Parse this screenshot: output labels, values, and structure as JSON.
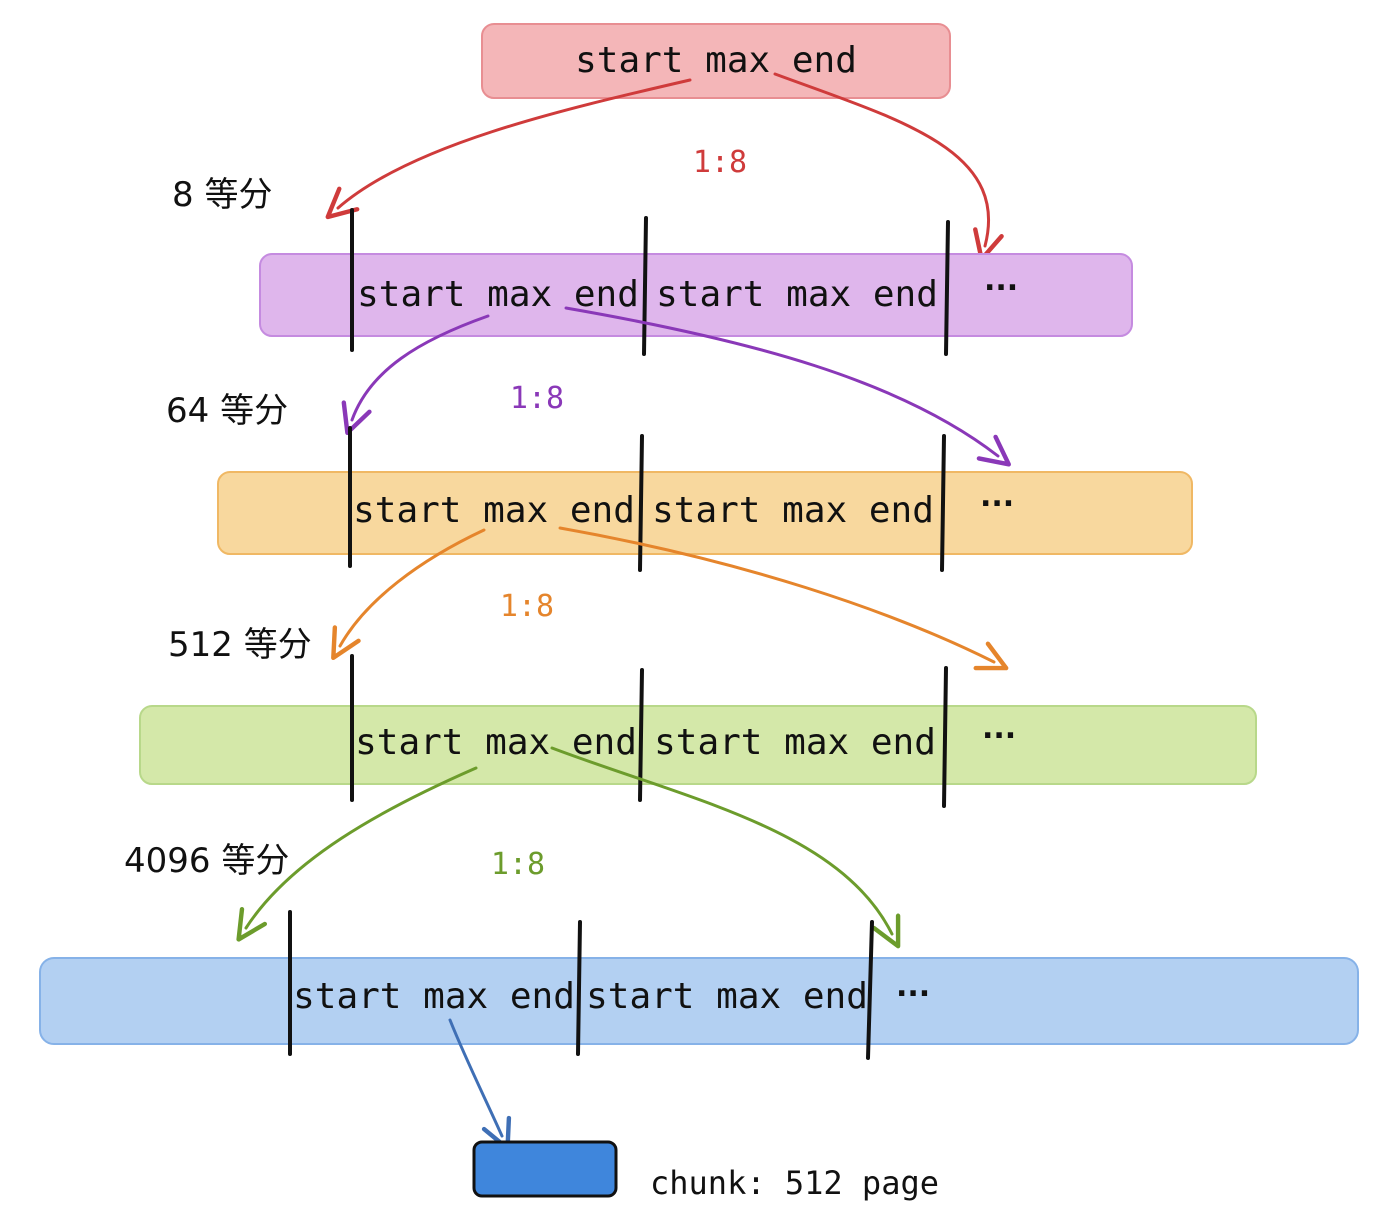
{
  "root": {
    "text": "start max end",
    "color": "#f4b6b8",
    "stroke": "#e88e92"
  },
  "levels": [
    {
      "label": "8 等分",
      "ratio": "1:8",
      "arrow_color": "#cf3b3b",
      "fill": "#dfb6ec",
      "stroke": "#c58be0",
      "cells": [
        "start max end",
        "start max end"
      ],
      "ellipsis": "..."
    },
    {
      "label": "64 等分",
      "ratio": "1:8",
      "arrow_color": "#8a38b8",
      "fill": "#f8d89e",
      "stroke": "#f0b864",
      "cells": [
        "start max end",
        "start max end"
      ],
      "ellipsis": "..."
    },
    {
      "label": "512 等分",
      "ratio": "1:8",
      "arrow_color": "#e5852c",
      "fill": "#d4e8a9",
      "stroke": "#b8d88a",
      "cells": [
        "start max end",
        "start max end"
      ],
      "ellipsis": "..."
    },
    {
      "label": "4096 等分",
      "ratio": "1:8",
      "arrow_color": "#6c9c2c",
      "fill": "#b3d0f2",
      "stroke": "#86b2e8",
      "cells": [
        "start max end",
        "start max end"
      ],
      "ellipsis": "..."
    }
  ],
  "chunk": {
    "label": "chunk: 512 page",
    "fill": "#3f86dc",
    "arrow_color": "#3f6fb5"
  }
}
